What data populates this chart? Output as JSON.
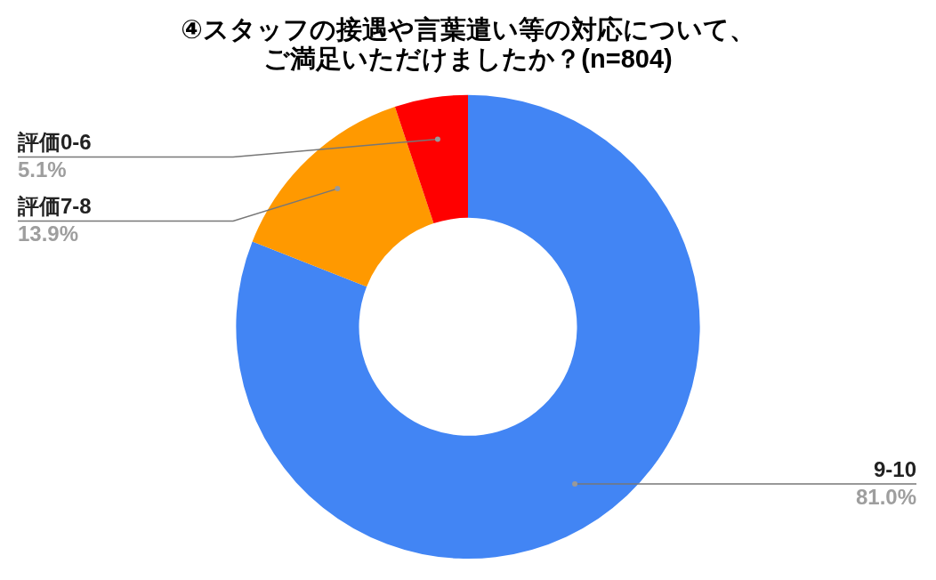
{
  "chart_data": {
    "type": "donut",
    "title": "④スタッフの接遇や言葉遣い等の対応について、ご満足いただけましたか？(n=804)",
    "categories": [
      "9-10",
      "評価7-8",
      "評価0-6"
    ],
    "values": [
      81.0,
      13.9,
      5.1
    ],
    "colors": [
      "#4285f4",
      "#ff9900",
      "#ff0000"
    ],
    "value_labels": [
      "81.0%",
      "13.9%",
      "5.1%"
    ],
    "legend": false
  }
}
